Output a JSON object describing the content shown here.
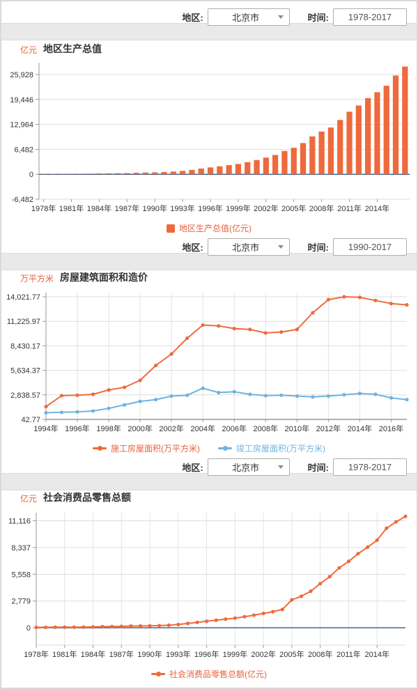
{
  "colors": {
    "orange": "#ee6a3c",
    "orange_text": "#e8613c",
    "blue": "#6fb3e0",
    "grid": "#dddddd",
    "vgrid": "#e4e4e4",
    "axis": "#999999",
    "axis_dark": "#666666",
    "zero_line": "#44688f",
    "label": "#333333"
  },
  "sections": [
    {
      "filters": {
        "region_label": "地区:",
        "region_value": "北京市",
        "time_label": "时间:",
        "time_value": "1978-2017"
      },
      "unit": "亿元",
      "title": "地区生产总值",
      "legend": [
        {
          "label": "地区生产总值(亿元)",
          "color": "#ee6a3c",
          "text_color": "#e8613c",
          "marker": "square"
        }
      ]
    },
    {
      "filters": {
        "region_label": "地区:",
        "region_value": "北京市",
        "time_label": "时间:",
        "time_value": "1990-2017"
      },
      "unit": "万平方米",
      "title": "房屋建筑面积和造价",
      "legend": [
        {
          "label": "施工房屋面积(万平方米)",
          "color": "#ee6a3c",
          "text_color": "#e8613c",
          "marker": "line"
        },
        {
          "label": "竣工房屋面积(万平方米)",
          "color": "#6fb3e0",
          "text_color": "#6fb3e0",
          "marker": "line"
        }
      ]
    },
    {
      "filters": {
        "region_label": "地区:",
        "region_value": "北京市",
        "time_label": "时间:",
        "time_value": "1978-2017"
      },
      "unit": "亿元",
      "title": "社会消费品零售总额",
      "legend": [
        {
          "label": "社会消费品零售总额(亿元)",
          "color": "#ee6a3c",
          "text_color": "#e8613c",
          "marker": "line"
        }
      ]
    }
  ],
  "chart_data": [
    {
      "type": "bar",
      "title": "地区生产总值",
      "ylabel": "亿元",
      "years": [
        1978,
        1979,
        1980,
        1981,
        1982,
        1983,
        1984,
        1985,
        1986,
        1987,
        1988,
        1989,
        1990,
        1991,
        1992,
        1993,
        1994,
        1995,
        1996,
        1997,
        1998,
        1999,
        2000,
        2001,
        2002,
        2003,
        2004,
        2005,
        2006,
        2007,
        2008,
        2009,
        2010,
        2011,
        2012,
        2013,
        2014,
        2015,
        2016,
        2017
      ],
      "series": [
        {
          "name": "地区生产总值(亿元)",
          "color": "#ee6a3c",
          "values": [
            108.8,
            120.1,
            139.1,
            139.2,
            154.9,
            183.1,
            216.6,
            257.1,
            284.9,
            326.8,
            410.2,
            456.0,
            500.8,
            598.9,
            709.1,
            886.2,
            1145.3,
            1507.7,
            1789.2,
            2077.1,
            2377.2,
            2678.8,
            3161.7,
            3710.5,
            4330.4,
            5023.8,
            6060.3,
            6886.3,
            8117.8,
            9846.8,
            11115.0,
            12153.0,
            14113.6,
            16251.9,
            17879.4,
            19800.8,
            21330.8,
            23014.6,
            25669.1,
            28000.4
          ]
        }
      ],
      "ylim": [
        -6482,
        29000
      ],
      "yticks": [
        {
          "v": -6482,
          "label": "-6,482"
        },
        {
          "v": 0,
          "label": "0"
        },
        {
          "v": 6482,
          "label": "6,482"
        },
        {
          "v": 12964,
          "label": "12,964"
        },
        {
          "v": 19446,
          "label": "19,446"
        },
        {
          "v": 25928,
          "label": "25,928"
        }
      ],
      "xticks": [
        {
          "i": 0,
          "label": "1978年"
        },
        {
          "i": 3,
          "label": "1981年"
        },
        {
          "i": 6,
          "label": "1984年"
        },
        {
          "i": 9,
          "label": "1987年"
        },
        {
          "i": 12,
          "label": "1990年"
        },
        {
          "i": 15,
          "label": "1993年"
        },
        {
          "i": 18,
          "label": "1996年"
        },
        {
          "i": 21,
          "label": "1999年"
        },
        {
          "i": 24,
          "label": "2002年"
        },
        {
          "i": 27,
          "label": "2005年"
        },
        {
          "i": 30,
          "label": "2008年"
        },
        {
          "i": 33,
          "label": "2011年"
        },
        {
          "i": 36,
          "label": "2014年"
        }
      ],
      "vgrid": false,
      "zero_line": true,
      "dark_bottom": false
    },
    {
      "type": "line",
      "title": "房屋建筑面积和造价",
      "ylabel": "万平方米",
      "years": [
        1994,
        1995,
        1996,
        1997,
        1998,
        1999,
        2000,
        2001,
        2002,
        2003,
        2004,
        2005,
        2006,
        2007,
        2008,
        2009,
        2010,
        2011,
        2012,
        2013,
        2014,
        2015,
        2016,
        2017
      ],
      "series": [
        {
          "name": "施工房屋面积(万平方米)",
          "color": "#ee6a3c",
          "values": [
            1500,
            2750,
            2800,
            2900,
            3400,
            3700,
            4500,
            6200,
            7500,
            9300,
            10800,
            10700,
            10400,
            10300,
            9900,
            10000,
            10300,
            12200,
            13700,
            14021,
            13960,
            13600,
            13250,
            13100
          ]
        },
        {
          "name": "竣工房屋面积(万平方米)",
          "color": "#6fb3e0",
          "values": [
            800,
            850,
            900,
            1000,
            1300,
            1700,
            2100,
            2300,
            2700,
            2800,
            3600,
            3100,
            3200,
            2900,
            2750,
            2800,
            2700,
            2600,
            2700,
            2850,
            3000,
            2900,
            2500,
            2300
          ]
        }
      ],
      "ylim": [
        42.77,
        14500
      ],
      "yticks": [
        {
          "v": 42.77,
          "label": "42.77"
        },
        {
          "v": 2838.57,
          "label": "2,838.57"
        },
        {
          "v": 5634.37,
          "label": "5,634.37"
        },
        {
          "v": 8430.17,
          "label": "8,430.17"
        },
        {
          "v": 11225.97,
          "label": "11,225.97"
        },
        {
          "v": 14021.77,
          "label": "14,021.77"
        }
      ],
      "xticks": [
        {
          "i": 0,
          "label": "1994年"
        },
        {
          "i": 2,
          "label": "1996年"
        },
        {
          "i": 4,
          "label": "1998年"
        },
        {
          "i": 6,
          "label": "2000年"
        },
        {
          "i": 8,
          "label": "2002年"
        },
        {
          "i": 10,
          "label": "2004年"
        },
        {
          "i": 12,
          "label": "2006年"
        },
        {
          "i": 14,
          "label": "2008年"
        },
        {
          "i": 16,
          "label": "2010年"
        },
        {
          "i": 18,
          "label": "2012年"
        },
        {
          "i": 20,
          "label": "2014年"
        },
        {
          "i": 22,
          "label": "2016年"
        }
      ],
      "vgrid": true,
      "zero_line": false,
      "dark_bottom": true
    },
    {
      "type": "line",
      "title": "社会消费品零售总额",
      "ylabel": "亿元",
      "years": [
        1978,
        1979,
        1980,
        1981,
        1982,
        1983,
        1984,
        1985,
        1986,
        1987,
        1988,
        1989,
        1990,
        1991,
        1992,
        1993,
        1994,
        1995,
        1996,
        1997,
        1998,
        1999,
        2000,
        2001,
        2002,
        2003,
        2004,
        2005,
        2006,
        2007,
        2008,
        2009,
        2010,
        2011,
        2012,
        2013,
        2014,
        2015,
        2016,
        2017
      ],
      "series": [
        {
          "name": "社会消费品零售总额(亿元)",
          "color": "#ee6a3c",
          "values": [
            43.4,
            50.2,
            57.2,
            61.3,
            65.5,
            72.4,
            88.1,
            117.2,
            130.1,
            146.3,
            186.2,
            190.1,
            201.2,
            223.4,
            265.3,
            340.1,
            452.3,
            558.4,
            680.1,
            785.2,
            898.3,
            1007.1,
            1152.4,
            1315.2,
            1495.3,
            1672.4,
            1902.3,
            2903.1,
            3275.2,
            3800.2,
            4589.1,
            5310.1,
            6229.3,
            6900.3,
            7702.8,
            8375.1,
            9098.1,
            10338.4,
            11005.1,
            11575.4
          ]
        }
      ],
      "ylim": [
        -1800,
        11950
      ],
      "yticks": [
        {
          "v": 0,
          "label": "0"
        },
        {
          "v": 2779,
          "label": "2,779"
        },
        {
          "v": 5558,
          "label": "5,558"
        },
        {
          "v": 8337,
          "label": "8,337"
        },
        {
          "v": 11116,
          "label": "11,116"
        }
      ],
      "xticks": [
        {
          "i": 0,
          "label": "1978年"
        },
        {
          "i": 3,
          "label": "1981年"
        },
        {
          "i": 6,
          "label": "1984年"
        },
        {
          "i": 9,
          "label": "1987年"
        },
        {
          "i": 12,
          "label": "1990年"
        },
        {
          "i": 15,
          "label": "1993年"
        },
        {
          "i": 18,
          "label": "1996年"
        },
        {
          "i": 21,
          "label": "1999年"
        },
        {
          "i": 24,
          "label": "2002年"
        },
        {
          "i": 27,
          "label": "2005年"
        },
        {
          "i": 30,
          "label": "2008年"
        },
        {
          "i": 33,
          "label": "2011年"
        },
        {
          "i": 36,
          "label": "2014年"
        }
      ],
      "vgrid": true,
      "zero_line": true,
      "dark_bottom": false
    }
  ]
}
